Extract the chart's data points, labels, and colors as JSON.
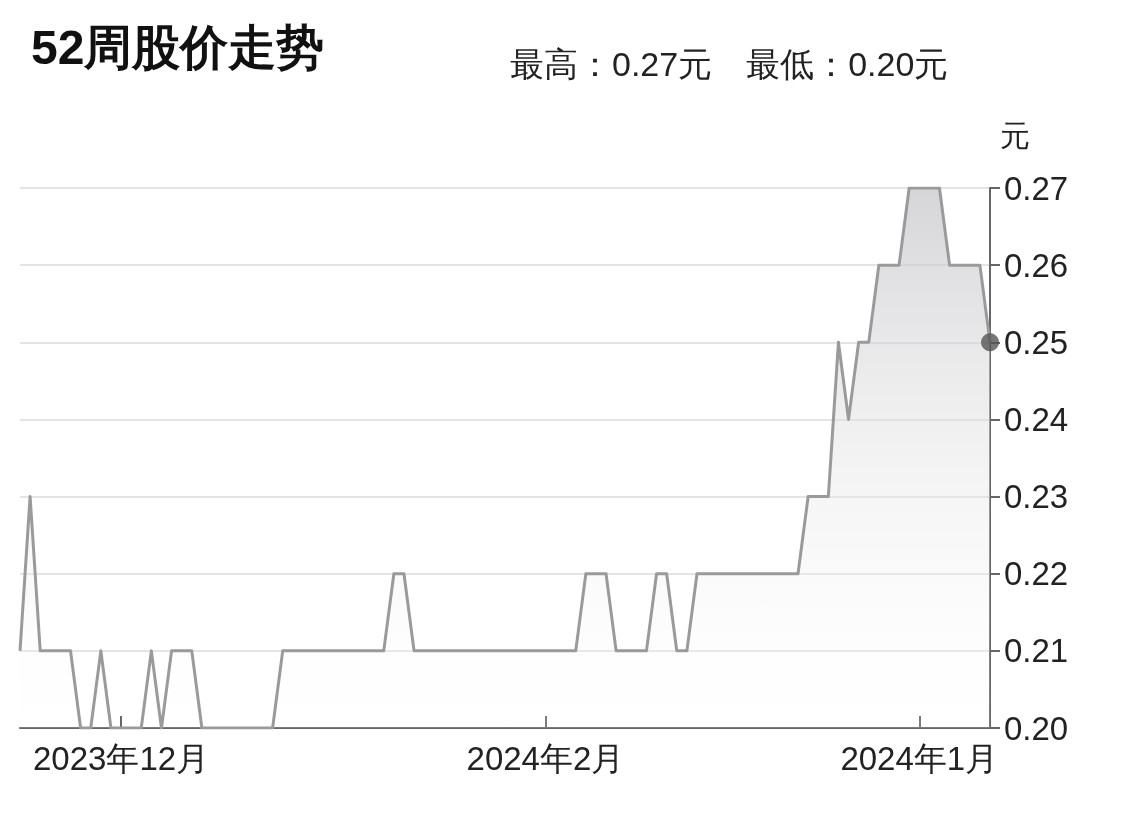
{
  "chart_data": {
    "type": "area",
    "title": "52周股价走势",
    "subtitle": "最高：0.27元　最低：0.20元",
    "ylabel": "元",
    "categories": [
      null,
      null,
      null,
      null,
      null,
      null,
      null,
      null,
      null,
      null,
      "2023年12月",
      null,
      null,
      null,
      null,
      null,
      null,
      null,
      null,
      null,
      null,
      null,
      null,
      null,
      null,
      null,
      null,
      null,
      null,
      null,
      null,
      null,
      null,
      null,
      null,
      null,
      null,
      null,
      null,
      null,
      null,
      null,
      null,
      null,
      null,
      null,
      null,
      null,
      null,
      null,
      null,
      null,
      "2024年2月",
      null,
      null,
      null,
      null,
      null,
      null,
      null,
      null,
      null,
      null,
      null,
      null,
      null,
      null,
      null,
      null,
      null,
      null,
      null,
      null,
      null,
      null,
      null,
      null,
      null,
      null,
      null,
      null,
      null,
      null,
      null,
      null,
      null,
      null,
      null,
      null,
      "2024年1月",
      null,
      null,
      null,
      null,
      null,
      null,
      null
    ],
    "ylim": [
      0.2,
      0.27
    ],
    "yticks": [
      {
        "value": 0.2,
        "label": "0.20"
      },
      {
        "value": 0.21,
        "label": "0.21"
      },
      {
        "value": 0.22,
        "label": "0.22"
      },
      {
        "value": 0.23,
        "label": "0.23"
      },
      {
        "value": 0.24,
        "label": "0.24"
      },
      {
        "value": 0.25,
        "label": "0.25"
      },
      {
        "value": 0.26,
        "label": "0.26"
      },
      {
        "value": 0.27,
        "label": "0.27"
      }
    ],
    "grid": "y",
    "series": [
      {
        "color": "#9a9a9a",
        "values": [
          0.21,
          0.23,
          0.21,
          0.21,
          0.21,
          0.21,
          0.2,
          0.2,
          0.21,
          0.2,
          0.2,
          0.2,
          0.2,
          0.21,
          0.2,
          0.21,
          0.21,
          0.21,
          0.2,
          0.2,
          0.2,
          0.2,
          0.2,
          0.2,
          0.2,
          0.2,
          0.21,
          0.21,
          0.21,
          0.21,
          0.21,
          0.21,
          0.21,
          0.21,
          0.21,
          0.21,
          0.21,
          0.22,
          0.22,
          0.21,
          0.21,
          0.21,
          0.21,
          0.21,
          0.21,
          0.21,
          0.21,
          0.21,
          0.21,
          0.21,
          0.21,
          0.21,
          0.21,
          0.21,
          0.21,
          0.21,
          0.22,
          0.22,
          0.22,
          0.21,
          0.21,
          0.21,
          0.21,
          0.22,
          0.22,
          0.21,
          0.21,
          0.22,
          0.22,
          0.22,
          0.22,
          0.22,
          0.22,
          0.22,
          0.22,
          0.22,
          0.22,
          0.22,
          0.23,
          0.23,
          0.23,
          0.25,
          0.24,
          0.25,
          0.25,
          0.26,
          0.26,
          0.26,
          0.27,
          0.27,
          0.27,
          0.27,
          0.26,
          0.26,
          0.26,
          0.26,
          0.25
        ]
      },
      {
        "type": "scatter",
        "color": "#555555",
        "values": [
          null,
          null,
          null,
          null,
          null,
          null,
          null,
          null,
          null,
          null,
          null,
          null,
          null,
          null,
          null,
          null,
          null,
          null,
          null,
          null,
          null,
          null,
          null,
          null,
          null,
          null,
          null,
          null,
          null,
          null,
          null,
          null,
          null,
          null,
          null,
          null,
          null,
          null,
          null,
          null,
          null,
          null,
          null,
          null,
          null,
          null,
          null,
          null,
          null,
          null,
          null,
          null,
          null,
          null,
          null,
          null,
          null,
          null,
          null,
          null,
          null,
          null,
          null,
          null,
          null,
          null,
          null,
          null,
          null,
          null,
          null,
          null,
          null,
          null,
          null,
          null,
          null,
          null,
          null,
          null,
          null,
          null,
          null,
          null,
          null,
          null,
          null,
          null,
          null,
          null,
          null,
          null,
          null,
          null,
          null,
          null,
          0.25
        ]
      }
    ]
  }
}
